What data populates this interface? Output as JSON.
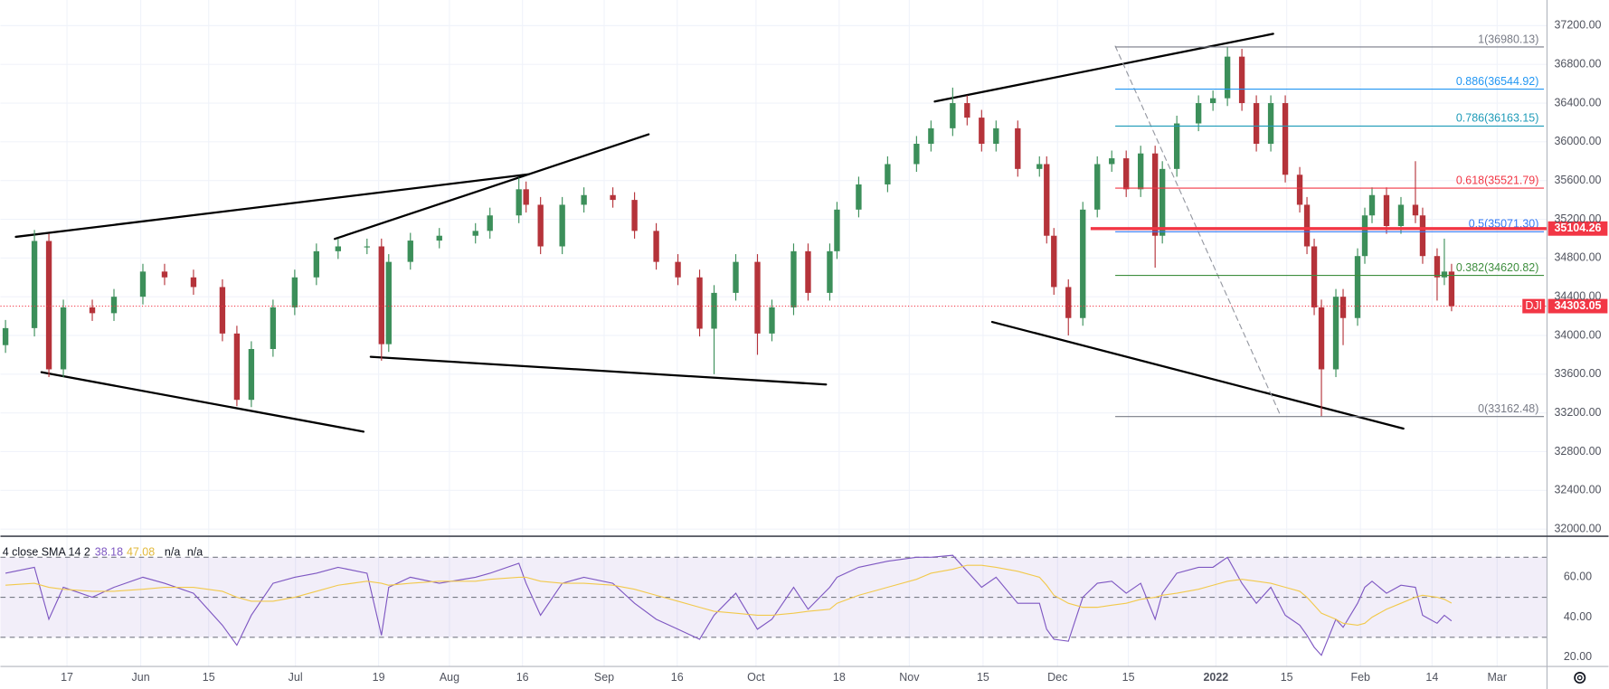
{
  "chart_data": [
    {
      "type": "candlestick",
      "symbol": "DJI",
      "up_color": "#3c8f5a",
      "down_color": "#b5333a",
      "grid": true,
      "x": [
        0,
        4,
        6,
        8,
        12,
        15,
        19,
        22,
        26,
        30,
        32,
        34,
        37,
        40,
        43,
        46,
        50,
        52,
        53,
        56,
        60,
        65,
        67,
        71,
        72,
        74,
        77,
        80,
        84,
        87,
        90,
        93,
        96,
        98,
        101,
        104,
        106,
        109,
        111,
        114,
        115,
        118,
        122,
        126,
        128,
        131,
        133,
        135,
        137,
        140,
        143,
        144,
        145,
        147,
        149,
        151,
        153,
        155,
        157,
        159,
        160,
        162,
        165,
        167,
        169,
        171,
        173,
        175,
        177,
        179,
        180,
        181,
        182,
        184,
        185,
        187,
        188,
        189,
        191,
        193,
        195,
        196,
        198,
        199,
        200
      ],
      "open": [
        33900,
        34076,
        34976,
        33650,
        34290,
        34230,
        34400,
        34660,
        34600,
        34500,
        34020,
        33335,
        33860,
        34290,
        34600,
        34870,
        34920,
        34920,
        33910,
        34760,
        34980,
        35030,
        35080,
        35240,
        35510,
        35350,
        34920,
        35350,
        35450,
        35400,
        35080,
        34760,
        34600,
        34070,
        34440,
        34760,
        34020,
        34290,
        34870,
        34440,
        34870,
        35300,
        35560,
        35770,
        35980,
        36140,
        36400,
        36250,
        35980,
        36140,
        35720,
        35770,
        35030,
        34500,
        34180,
        35300,
        35770,
        35830,
        35510,
        35880,
        35030,
        35720,
        36190,
        36400,
        36450,
        36880,
        36400,
        35980,
        36400,
        35660,
        35350,
        34920,
        34290,
        33650,
        34400,
        34180,
        34820,
        35240,
        35450,
        35130,
        35350,
        35240,
        34820,
        34600,
        34660
      ],
      "high": [
        34160,
        35090,
        35050,
        34370,
        34370,
        34480,
        34740,
        34740,
        34680,
        34580,
        34100,
        33940,
        34370,
        34680,
        34950,
        35000,
        35000,
        35000,
        34840,
        35060,
        35110,
        35160,
        35320,
        35630,
        35590,
        35430,
        35430,
        35530,
        35530,
        35480,
        35160,
        34840,
        34680,
        34520,
        34840,
        34840,
        34370,
        34950,
        34950,
        34950,
        35380,
        35640,
        35850,
        36060,
        36220,
        36560,
        36480,
        36330,
        36220,
        36220,
        35850,
        35850,
        35110,
        34580,
        35380,
        35850,
        35910,
        35910,
        35960,
        35960,
        35800,
        36270,
        36480,
        36530,
        36980,
        36960,
        36480,
        36480,
        36480,
        35740,
        35430,
        35000,
        34370,
        34480,
        34480,
        34900,
        35320,
        35530,
        35530,
        35430,
        35800,
        35320,
        34900,
        35000,
        34740
      ],
      "low": [
        33820,
        33990,
        33570,
        33570,
        34150,
        34150,
        34320,
        34520,
        34420,
        33940,
        33270,
        33260,
        33780,
        34210,
        34520,
        34790,
        34840,
        33740,
        33830,
        34680,
        34900,
        34950,
        35000,
        35160,
        35270,
        34840,
        34840,
        35270,
        35320,
        35000,
        34680,
        34520,
        33990,
        33600,
        34360,
        33800,
        33940,
        34210,
        34360,
        34360,
        34790,
        35220,
        35480,
        35690,
        35900,
        36060,
        36170,
        35900,
        35900,
        35640,
        35640,
        34950,
        34420,
        34000,
        34100,
        35220,
        35690,
        35430,
        35430,
        34700,
        34950,
        35640,
        36110,
        36320,
        36370,
        36320,
        35900,
        35900,
        35580,
        35270,
        34840,
        34210,
        33162,
        33570,
        33900,
        34100,
        34740,
        35160,
        35050,
        35050,
        35160,
        34740,
        34360,
        34520,
        34250
      ],
      "close": [
        34076,
        34976,
        33650,
        34290,
        34230,
        34400,
        34660,
        34600,
        34500,
        34020,
        33335,
        33860,
        34290,
        34600,
        34870,
        34920,
        34920,
        33910,
        34760,
        34980,
        35030,
        35080,
        35240,
        35510,
        35350,
        34920,
        35350,
        35450,
        35400,
        35080,
        34760,
        34600,
        34070,
        34440,
        34760,
        34020,
        34290,
        34870,
        34440,
        34870,
        35300,
        35560,
        35770,
        35980,
        36140,
        36400,
        36250,
        35980,
        36140,
        35720,
        35770,
        35030,
        34500,
        34180,
        35300,
        35770,
        35830,
        35510,
        35880,
        35030,
        35720,
        36190,
        36400,
        36450,
        36880,
        36400,
        35980,
        36400,
        35660,
        35350,
        34920,
        34290,
        33650,
        34400,
        34180,
        34820,
        35240,
        35450,
        35130,
        35350,
        35240,
        34820,
        34600,
        34660,
        34303.05
      ],
      "xlim": [
        -0.7,
        213.2
      ],
      "xticks": [
        {
          "value": 8.5,
          "label": "17"
        },
        {
          "value": 18.7,
          "label": "Jun"
        },
        {
          "value": 28.1,
          "label": "15"
        },
        {
          "value": 40.1,
          "label": "Jul"
        },
        {
          "value": 51.6,
          "label": "19"
        },
        {
          "value": 61.4,
          "label": "Aug"
        },
        {
          "value": 71.5,
          "label": "16"
        },
        {
          "value": 82.8,
          "label": "Sep"
        },
        {
          "value": 92.9,
          "label": "16"
        },
        {
          "value": 103.8,
          "label": "Oct"
        },
        {
          "value": 115.3,
          "label": "18"
        },
        {
          "value": 125,
          "label": "Nov"
        },
        {
          "value": 135.2,
          "label": "15"
        },
        {
          "value": 145.5,
          "label": "Dec"
        },
        {
          "value": 155.3,
          "label": "15"
        },
        {
          "value": 167.4,
          "label": "2022"
        },
        {
          "value": 177.2,
          "label": "15"
        },
        {
          "value": 187.4,
          "label": "Feb"
        },
        {
          "value": 197.3,
          "label": "14"
        },
        {
          "value": 206.3,
          "label": "Mar"
        }
      ],
      "ylim": [
        31958,
        37465
      ],
      "yticks": [
        {
          "value": 32000,
          "label": "32000.00"
        },
        {
          "value": 32400,
          "label": "32400.00"
        },
        {
          "value": 32800,
          "label": "32800.00"
        },
        {
          "value": 33200,
          "label": "33200.00"
        },
        {
          "value": 33600,
          "label": "33600.00"
        },
        {
          "value": 34000,
          "label": "34000.00"
        },
        {
          "value": 34400,
          "label": "34400.00"
        },
        {
          "value": 34800,
          "label": "34800.00"
        },
        {
          "value": 35200,
          "label": "35200.00"
        },
        {
          "value": 35600,
          "label": "35600.00"
        },
        {
          "value": 36000,
          "label": "36000.00"
        },
        {
          "value": 36400,
          "label": "36400.00"
        },
        {
          "value": 36800,
          "label": "36800.00"
        },
        {
          "value": 37200,
          "label": "37200.00"
        }
      ],
      "levels": [
        {
          "value": 36980.13,
          "label": "1(36980.13)",
          "color": "#787b86"
        },
        {
          "value": 36544.92,
          "label": "0.886(36544.92)",
          "color": "#2196f3"
        },
        {
          "value": 36163.15,
          "label": "0.786(36163.15)",
          "color": "#1e9bb8"
        },
        {
          "value": 35521.79,
          "label": "0.618(35521.79)",
          "color": "#f23645"
        },
        {
          "value": 35071.3,
          "label": "0.5(35071.30)",
          "color": "#3179f5"
        },
        {
          "value": 34620.82,
          "label": "0.382(34620.82)",
          "color": "#3e8e3e"
        },
        {
          "value": 33162.48,
          "label": "0(33162.48)",
          "color": "#787b86"
        }
      ],
      "price_lines": [
        {
          "value": 35104.26,
          "color": "#f23645",
          "style": "solid"
        },
        {
          "value": 34303.05,
          "color": "#f23645",
          "style": "dotted"
        }
      ]
    },
    {
      "type": "line",
      "legend_label": "4 close SMA 14 2",
      "legend_values": [
        38.18,
        47.08
      ],
      "legend_extra": [
        "n/a",
        "n/a"
      ],
      "x": [
        0,
        4,
        6,
        8,
        12,
        15,
        19,
        22,
        26,
        30,
        32,
        34,
        37,
        40,
        43,
        46,
        50,
        52,
        53,
        56,
        60,
        65,
        67,
        71,
        72,
        74,
        77,
        80,
        84,
        87,
        90,
        93,
        96,
        98,
        101,
        104,
        106,
        109,
        111,
        114,
        115,
        118,
        122,
        126,
        128,
        131,
        133,
        135,
        137,
        140,
        143,
        144,
        145,
        147,
        149,
        151,
        153,
        155,
        157,
        159,
        160,
        162,
        165,
        167,
        169,
        171,
        173,
        175,
        177,
        179,
        180,
        181,
        182,
        184,
        185,
        187,
        188,
        189,
        191,
        193,
        195,
        196,
        198,
        199,
        200
      ],
      "series": [
        {
          "color": "#7e57c2",
          "values": [
            62,
            65,
            39,
            55,
            50,
            55,
            60,
            57,
            52,
            36,
            26,
            41,
            57,
            60,
            62,
            65,
            62,
            31,
            55,
            60,
            57,
            60,
            62,
            67,
            57,
            41,
            57,
            60,
            57,
            47,
            39,
            34,
            29,
            41,
            52,
            34,
            39,
            55,
            44,
            55,
            60,
            65,
            68,
            70,
            70,
            71,
            63,
            55,
            60,
            47,
            47,
            34,
            29,
            28,
            50,
            57,
            58,
            52,
            57,
            39,
            52,
            62,
            65,
            65,
            70,
            57,
            47,
            55,
            41,
            36,
            31,
            25,
            21,
            39,
            35,
            47,
            55,
            58,
            52,
            56,
            55,
            41,
            37,
            41,
            38.18
          ]
        },
        {
          "color": "#f2c94c",
          "values": [
            56,
            57,
            55,
            54,
            53,
            53,
            54,
            55,
            55,
            53,
            50,
            48,
            48,
            50,
            53,
            56,
            58,
            57,
            56,
            57,
            58,
            58,
            59,
            60,
            60,
            58,
            57,
            57,
            56,
            54,
            51,
            48,
            45,
            43,
            42,
            41,
            41,
            42,
            43,
            44,
            47,
            51,
            55,
            59,
            62,
            64,
            66,
            66,
            65,
            63,
            60,
            56,
            51,
            47,
            45,
            45,
            46,
            47,
            49,
            50,
            51,
            52,
            54,
            56,
            58,
            59,
            58,
            57,
            55,
            53,
            50,
            46,
            42,
            39,
            37,
            36,
            37,
            40,
            44,
            47,
            50,
            51,
            50,
            49,
            47.08
          ]
        }
      ],
      "ylim": [
        15.4,
        80
      ],
      "yticks": [
        {
          "value": 20,
          "label": "20.00"
        },
        {
          "value": 40,
          "label": "40.00"
        },
        {
          "value": 60,
          "label": "60.00"
        }
      ],
      "bands": [
        70,
        50,
        30
      ]
    }
  ]
}
